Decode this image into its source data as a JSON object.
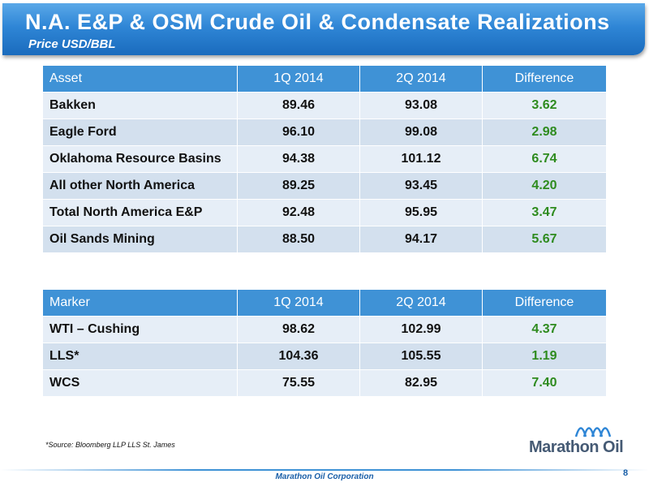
{
  "header": {
    "title": "N.A. E&P & OSM Crude Oil & Condensate Realizations",
    "subtitle": "Price USD/BBL"
  },
  "asset_table": {
    "columns": [
      "Asset",
      "1Q 2014",
      "2Q 2014",
      "Difference"
    ],
    "rows": [
      [
        "Bakken",
        "89.46",
        "93.08",
        "3.62"
      ],
      [
        "Eagle Ford",
        "96.10",
        "99.08",
        "2.98"
      ],
      [
        "Oklahoma Resource Basins",
        "94.38",
        "101.12",
        "6.74"
      ],
      [
        "All other North America",
        "89.25",
        "93.45",
        "4.20"
      ],
      [
        "Total North America E&P",
        "92.48",
        "95.95",
        "3.47"
      ],
      [
        "Oil Sands Mining",
        "88.50",
        "94.17",
        "5.67"
      ]
    ]
  },
  "marker_table": {
    "columns": [
      "Marker",
      "1Q 2014",
      "2Q 2014",
      "Difference"
    ],
    "rows": [
      [
        "WTI – Cushing",
        "98.62",
        "102.99",
        "4.37"
      ],
      [
        "LLS*",
        "104.36",
        "105.55",
        "1.19"
      ],
      [
        "WCS",
        "75.55",
        "82.95",
        "7.40"
      ]
    ]
  },
  "footnote": "*Source: Bloomberg LLP LLS St. James",
  "logo": {
    "text": "Marathon Oil",
    "icon": "marathon-wave-icon"
  },
  "footer": {
    "company": "Marathon Oil Corporation",
    "page_number": "8"
  },
  "colors": {
    "header_blue": "#2f86d6",
    "table_header": "#3f92d6",
    "row_light": "#e6eef7",
    "row_dark": "#d3e0ee",
    "difference_green": "#2e8b1e"
  }
}
